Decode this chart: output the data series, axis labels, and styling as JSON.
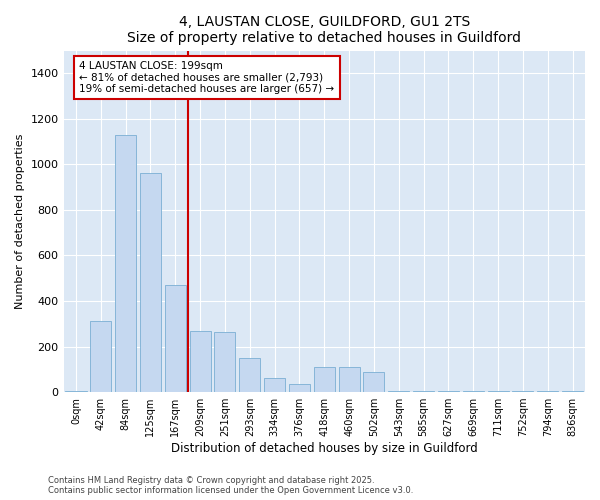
{
  "title1": "4, LAUSTAN CLOSE, GUILDFORD, GU1 2TS",
  "title2": "Size of property relative to detached houses in Guildford",
  "xlabel": "Distribution of detached houses by size in Guildford",
  "ylabel": "Number of detached properties",
  "categories": [
    "0sqm",
    "42sqm",
    "84sqm",
    "125sqm",
    "167sqm",
    "209sqm",
    "251sqm",
    "293sqm",
    "334sqm",
    "376sqm",
    "418sqm",
    "460sqm",
    "502sqm",
    "543sqm",
    "585sqm",
    "627sqm",
    "669sqm",
    "711sqm",
    "752sqm",
    "794sqm",
    "836sqm"
  ],
  "values": [
    5,
    310,
    1130,
    960,
    470,
    270,
    265,
    150,
    60,
    35,
    110,
    110,
    90,
    5,
    5,
    5,
    5,
    5,
    5,
    5,
    5
  ],
  "bar_color": "#c5d8f0",
  "bar_edgecolor": "#7aafd4",
  "vline_color": "#cc0000",
  "annotation_text": "4 LAUSTAN CLOSE: 199sqm\n← 81% of detached houses are smaller (2,793)\n19% of semi-detached houses are larger (657) →",
  "annotation_box_color": "#cc0000",
  "ylim": [
    0,
    1500
  ],
  "yticks": [
    0,
    200,
    400,
    600,
    800,
    1000,
    1200,
    1400
  ],
  "footer1": "Contains HM Land Registry data © Crown copyright and database right 2025.",
  "footer2": "Contains public sector information licensed under the Open Government Licence v3.0.",
  "bg_color": "#dce8f5",
  "plot_bg_color": "#dce8f5"
}
